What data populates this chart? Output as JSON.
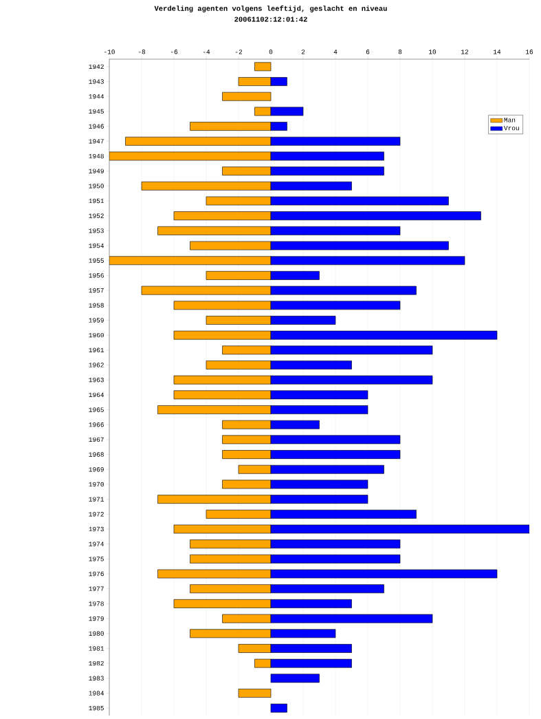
{
  "chart_data": {
    "type": "bar",
    "orientation": "horizontal",
    "stacked": true,
    "title": "Verdeling agenten volgens leeftijd, geslacht en niveau",
    "subtitle": "20061102:12:01:42",
    "categories": [
      "1942",
      "1943",
      "1944",
      "1945",
      "1946",
      "1947",
      "1948",
      "1949",
      "1950",
      "1951",
      "1952",
      "1953",
      "1954",
      "1955",
      "1956",
      "1957",
      "1958",
      "1959",
      "1960",
      "1961",
      "1962",
      "1963",
      "1964",
      "1965",
      "1966",
      "1967",
      "1968",
      "1969",
      "1970",
      "1971",
      "1972",
      "1973",
      "1974",
      "1975",
      "1976",
      "1977",
      "1978",
      "1979",
      "1980",
      "1981",
      "1982",
      "1983",
      "1984",
      "1985"
    ],
    "series": [
      {
        "name": "Man",
        "color": "#ffa500",
        "values": [
          -1,
          -2,
          -3,
          -1,
          -5,
          -9,
          -10,
          -3,
          -8,
          -4,
          -6,
          -7,
          -5,
          -10,
          -4,
          -8,
          -6,
          -4,
          -6,
          -3,
          -4,
          -6,
          -6,
          -7,
          -3,
          -3,
          -3,
          -2,
          -3,
          -7,
          -4,
          -6,
          -5,
          -5,
          -7,
          -5,
          -6,
          -3,
          -5,
          -2,
          -1,
          0,
          -2,
          0
        ]
      },
      {
        "name": "Vrou",
        "color": "#0000ff",
        "values": [
          0,
          1,
          0,
          2,
          1,
          8,
          7,
          7,
          5,
          11,
          13,
          8,
          11,
          12,
          3,
          9,
          8,
          4,
          14,
          10,
          5,
          10,
          6,
          6,
          3,
          8,
          8,
          7,
          6,
          6,
          9,
          16,
          8,
          8,
          14,
          7,
          5,
          10,
          4,
          5,
          5,
          3,
          0,
          1
        ]
      }
    ],
    "xlim": [
      -10,
      16
    ],
    "xticks": [
      -10,
      -8,
      -6,
      -4,
      -2,
      0,
      2,
      4,
      6,
      8,
      10,
      12,
      14,
      16
    ],
    "grid": "x",
    "legend": "top right"
  }
}
